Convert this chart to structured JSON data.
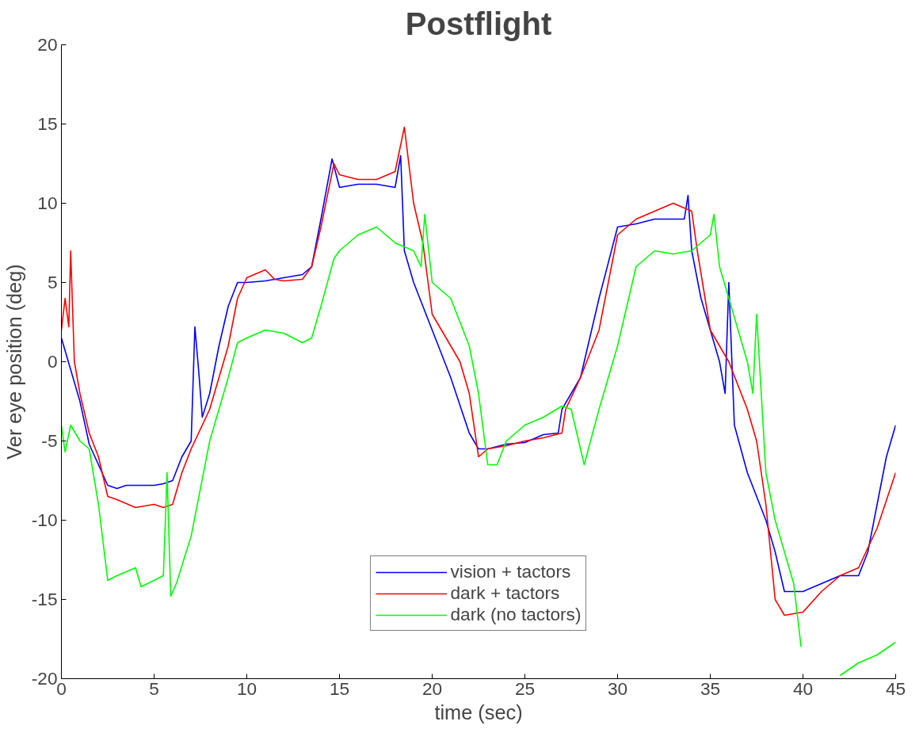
{
  "chart_data": {
    "type": "line",
    "title": "Postflight",
    "xlabel": "time (sec)",
    "ylabel": "Ver eye position (deg)",
    "xlim": [
      0,
      45
    ],
    "xticks": [
      0,
      5,
      10,
      15,
      20,
      25,
      30,
      35,
      40,
      45
    ],
    "ylim": [
      -20,
      20
    ],
    "yticks": [
      -20,
      -15,
      -10,
      -5,
      0,
      5,
      10,
      15,
      20
    ],
    "grid": false,
    "legend": "bottom",
    "marker": "none",
    "line_style": "solid",
    "series": [
      {
        "name": "vision + tactors",
        "color": "#0000ff",
        "x": [
          0,
          0.5,
          1,
          1.5,
          2,
          2.5,
          3,
          3.5,
          4,
          5,
          5.5,
          6,
          6.5,
          7,
          7.2,
          7.4,
          7.6,
          8,
          8.5,
          9,
          9.5,
          10,
          11,
          12,
          13,
          13.5,
          14,
          14.6,
          15,
          16,
          17,
          18,
          18.3,
          18.5,
          19,
          20,
          21,
          22,
          22.5,
          23,
          24,
          25,
          26,
          26.8,
          27,
          28,
          29,
          30,
          31,
          32,
          33,
          33.6,
          33.8,
          34,
          34.5,
          35,
          35.5,
          35.8,
          36,
          36.3,
          37,
          38,
          38.5,
          39,
          40,
          41,
          42,
          43,
          43.5,
          44,
          44.5,
          45
        ],
        "values": [
          1.5,
          -0.5,
          -2.5,
          -5.2,
          -6.5,
          -7.8,
          -8,
          -7.8,
          -7.8,
          -7.8,
          -7.7,
          -7.5,
          -6,
          -5,
          2.2,
          -0.5,
          -3.5,
          -2,
          1,
          3.5,
          5,
          5,
          5.1,
          5.3,
          5.5,
          6,
          9,
          12.8,
          11,
          11.2,
          11.2,
          11,
          13,
          7,
          5,
          2,
          -1,
          -4.5,
          -5.5,
          -5.5,
          -5.2,
          -5.1,
          -4.6,
          -4.5,
          -3,
          -1,
          4,
          8.5,
          8.7,
          9,
          9,
          9,
          10.5,
          7,
          4,
          2,
          0,
          -2,
          5,
          -4,
          -7,
          -10,
          -12,
          -14.5,
          -14.5,
          -14,
          -13.5,
          -13.5,
          -12,
          -9,
          -6,
          -4
        ]
      },
      {
        "name": "dark + tactors",
        "color": "#ff0000",
        "x": [
          0,
          0.2,
          0.4,
          0.5,
          0.7,
          1,
          1.5,
          2,
          2.5,
          3,
          4,
          5,
          5.5,
          6,
          6.5,
          7,
          8,
          9,
          9.5,
          10,
          11,
          11.5,
          12,
          13,
          13.5,
          14,
          14.7,
          15,
          16,
          17,
          18,
          18.5,
          19,
          19.5,
          20,
          21,
          21.5,
          22,
          22.5,
          23,
          24,
          25,
          26,
          27,
          27.2,
          28,
          29,
          30,
          31,
          32,
          33,
          34,
          34.3,
          35,
          36,
          37,
          37.5,
          38,
          38.5,
          39,
          40,
          41,
          42,
          43,
          44,
          45
        ],
        "values": [
          2,
          4,
          2.2,
          7,
          0,
          -2,
          -4.5,
          -6,
          -8.5,
          -8.7,
          -9.2,
          -9,
          -9.2,
          -9,
          -7,
          -5.5,
          -3,
          1,
          4,
          5.3,
          5.8,
          5.2,
          5.1,
          5.2,
          6,
          8.5,
          12.5,
          11.8,
          11.5,
          11.5,
          12,
          14.8,
          10,
          7.5,
          3,
          1,
          0,
          -2,
          -6,
          -5.5,
          -5.3,
          -5,
          -4.8,
          -4.5,
          -3,
          -1,
          2,
          8,
          9,
          9.5,
          10,
          9.5,
          7,
          2,
          0,
          -3,
          -5,
          -9,
          -15,
          -16,
          -15.8,
          -14.5,
          -13.5,
          -13,
          -10.5,
          -7
        ]
      },
      {
        "name": "dark (no tactors)",
        "color": "#00ff00",
        "x": [
          0,
          0.2,
          0.5,
          1,
          1.5,
          2,
          2.5,
          3,
          4,
          4.3,
          5,
          5.5,
          5.7,
          5.9,
          6.2,
          7,
          8,
          9,
          9.5,
          10,
          11,
          12,
          13,
          13.5,
          14,
          14.7,
          15,
          16,
          17,
          18,
          19,
          19.4,
          19.6,
          20,
          21,
          22,
          22.5,
          23,
          23.5,
          24,
          25,
          26,
          27,
          27.5,
          28,
          28.2,
          29,
          30,
          31,
          32,
          33,
          34,
          35,
          35.2,
          35.5,
          36,
          37,
          37.3,
          37.5,
          37.8,
          38,
          38.5,
          39,
          39.5,
          39.9,
          40.5,
          42,
          43,
          44,
          45
        ],
        "values": [
          -4,
          -5.7,
          -4,
          -5,
          -5.5,
          -9,
          -13.8,
          -13.5,
          -13,
          -14.2,
          -13.8,
          -13.5,
          -7,
          -14.8,
          -14,
          -11,
          -5,
          -1,
          1.2,
          1.5,
          2,
          1.8,
          1.2,
          1.5,
          3.5,
          6.5,
          7,
          8,
          8.5,
          7.5,
          7,
          6,
          9.3,
          5,
          4,
          1,
          -2,
          -6.5,
          -6.5,
          -5,
          -4,
          -3.5,
          -2.8,
          -3,
          -5.5,
          -6.5,
          -3,
          1,
          6,
          7,
          6.8,
          7,
          8,
          9.3,
          6,
          4,
          0,
          -2,
          3,
          -3,
          -7,
          -10,
          -12,
          -14,
          -18,
          null,
          -19.8,
          -19,
          -18.5,
          -17.7
        ]
      }
    ]
  }
}
